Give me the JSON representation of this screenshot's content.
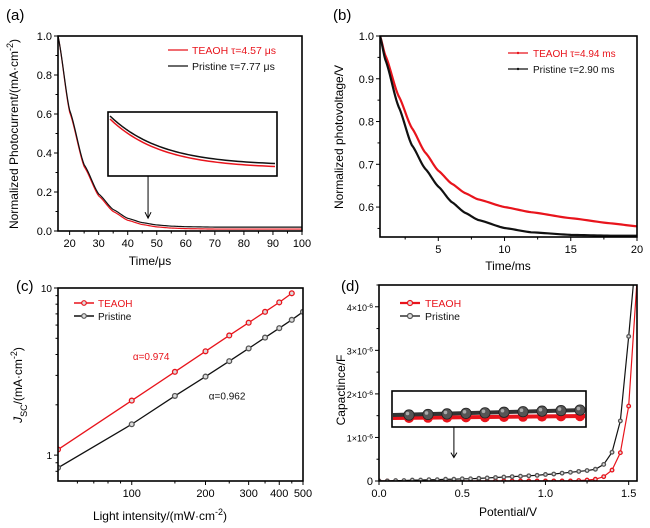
{
  "colors": {
    "teaoh": "#e8141c",
    "pristine": "#111111",
    "pristine_marker": "#555555",
    "axis": "#000000"
  },
  "chart_data": [
    {
      "id": "a",
      "panel_label": "(a)",
      "type": "line",
      "title": "",
      "xlabel": "Time/μs",
      "ylabel": "Normalized Photocurrent/(mA·cm",
      "ylabel_sup": "-2",
      "ylabel_end": ")",
      "xlim": [
        16,
        100
      ],
      "ylim": [
        0.0,
        1.0
      ],
      "xscale": "linear",
      "yscale": "linear",
      "xticks": [
        20,
        30,
        40,
        50,
        60,
        70,
        80,
        90,
        100
      ],
      "xtick_labels": [
        "20",
        "30",
        "40",
        "50",
        "60",
        "70",
        "80",
        "90",
        "100"
      ],
      "yticks": [
        0.0,
        0.2,
        0.4,
        0.6,
        0.8,
        1.0
      ],
      "ytick_labels": [
        "0.0",
        "0.2",
        "0.4",
        "0.6",
        "0.8",
        "1.0"
      ],
      "grid": false,
      "legend": {
        "position": "top-right",
        "entries": [
          {
            "label": "TEAOH τ=4.57 μs",
            "series": "TEAOH"
          },
          {
            "label": "Pristine τ=7.77 μs",
            "series": "Pristine"
          }
        ]
      },
      "series": [
        {
          "name": "TEAOH",
          "color_key": "teaoh",
          "marker": "none",
          "x": [
            16,
            20,
            25,
            30,
            35,
            40,
            45,
            50,
            55,
            60,
            70,
            80,
            90,
            100
          ],
          "y": [
            1.0,
            0.61,
            0.33,
            0.18,
            0.1,
            0.055,
            0.033,
            0.021,
            0.015,
            0.012,
            0.01,
            0.01,
            0.01,
            0.01
          ]
        },
        {
          "name": "Pristine",
          "color_key": "pristine",
          "marker": "none",
          "x": [
            16,
            20,
            25,
            30,
            35,
            40,
            45,
            50,
            55,
            60,
            70,
            80,
            90,
            100
          ],
          "y": [
            1.0,
            0.62,
            0.34,
            0.19,
            0.11,
            0.065,
            0.043,
            0.031,
            0.025,
            0.022,
            0.02,
            0.02,
            0.02,
            0.02
          ]
        }
      ],
      "annotations": [
        {
          "type": "inset-zoom",
          "description": "magnified tail of both curves",
          "arrow_to_x": 47,
          "arrow_to_y": 0.035
        }
      ]
    },
    {
      "id": "b",
      "panel_label": "(b)",
      "type": "line",
      "title": "",
      "xlabel": "Time/ms",
      "ylabel": "Normalized photovoltage/V",
      "xlim": [
        0.6,
        20
      ],
      "ylim": [
        0.53,
        1.0
      ],
      "xscale": "linear",
      "yscale": "linear",
      "xticks": [
        5,
        10,
        15,
        20
      ],
      "xtick_labels": [
        "5",
        "10",
        "15",
        "20"
      ],
      "yticks": [
        0.6,
        0.7,
        0.8,
        0.9,
        1.0
      ],
      "ytick_labels": [
        "0.6",
        "0.7",
        "0.8",
        "0.9",
        "1.0"
      ],
      "grid": false,
      "legend": {
        "position": "top-right",
        "entries": [
          {
            "label": "TEAOH τ=4.94 ms",
            "series": "TEAOH"
          },
          {
            "label": "Pristine  τ=2.90 ms",
            "series": "Pristine"
          }
        ]
      },
      "series": [
        {
          "name": "TEAOH",
          "color_key": "teaoh",
          "marker": "none",
          "x": [
            0.6,
            1,
            2,
            3,
            4,
            5,
            6,
            7,
            8,
            10,
            12,
            15,
            18,
            20
          ],
          "y": [
            1.0,
            0.955,
            0.86,
            0.785,
            0.728,
            0.685,
            0.655,
            0.633,
            0.618,
            0.6,
            0.588,
            0.574,
            0.562,
            0.555
          ]
        },
        {
          "name": "Pristine",
          "color_key": "pristine",
          "marker": "none",
          "x": [
            0.6,
            1,
            2,
            3,
            4,
            5,
            6,
            7,
            8,
            10,
            12,
            15,
            18,
            20
          ],
          "y": [
            1.0,
            0.945,
            0.835,
            0.745,
            0.69,
            0.648,
            0.612,
            0.587,
            0.57,
            0.551,
            0.541,
            0.535,
            0.533,
            0.533
          ]
        }
      ]
    },
    {
      "id": "c",
      "panel_label": "(c)",
      "type": "line",
      "title": "",
      "xlabel": "Light intensity/(mW·cm",
      "xlabel_sup": "-2",
      "xlabel_end": ")",
      "ylabel_main": "J",
      "ylabel_sub": "SC",
      "ylabel_rest": "/(mA·cm",
      "ylabel_sup": "-2",
      "ylabel_end": ")",
      "xlim": [
        50,
        500
      ],
      "ylim": [
        0.7,
        10
      ],
      "xscale": "log",
      "yscale": "log",
      "xticks": [
        100,
        200,
        300,
        400,
        500
      ],
      "xtick_labels": [
        "100",
        "200",
        "300",
        "400",
        "500"
      ],
      "yticks": [
        1,
        10
      ],
      "ytick_labels": [
        "1",
        "10"
      ],
      "grid": false,
      "legend": {
        "position": "top-left",
        "entries": [
          {
            "label": "TEAOH",
            "series": "TEAOH"
          },
          {
            "label": "Pristine",
            "series": "Pristine"
          }
        ]
      },
      "series": [
        {
          "name": "TEAOH",
          "color_key": "teaoh",
          "marker": "circle",
          "x": [
            50,
            100,
            150,
            200,
            250,
            300,
            350,
            400,
            450
          ],
          "y": [
            1.08,
            2.12,
            3.15,
            4.18,
            5.2,
            6.2,
            7.2,
            8.2,
            9.3
          ]
        },
        {
          "name": "Pristine",
          "color_key": "pristine",
          "marker": "circle",
          "x": [
            50,
            100,
            150,
            200,
            250,
            300,
            350,
            400,
            450,
            500
          ],
          "y": [
            0.84,
            1.53,
            2.26,
            2.95,
            3.65,
            4.35,
            5.05,
            5.75,
            6.45,
            7.2
          ]
        }
      ],
      "annotations": [
        {
          "text": "α=0.974",
          "color_key": "teaoh",
          "x": 120,
          "y": 3.7
        },
        {
          "text": "α=0.962",
          "color_key": "pristine",
          "x": 245,
          "y": 2.15
        }
      ]
    },
    {
      "id": "d",
      "panel_label": "(d)",
      "type": "line",
      "title": "",
      "xlabel": "Potential/V",
      "ylabel": "Capactince/F",
      "xlim": [
        0.0,
        1.55
      ],
      "ylim": [
        0,
        4.5e-06
      ],
      "xscale": "linear",
      "yscale": "linear",
      "xticks": [
        0.0,
        0.5,
        1.0,
        1.5
      ],
      "xtick_labels": [
        "0.0",
        "0.5",
        "1.0",
        "1.5"
      ],
      "yticks": [
        0,
        1e-06,
        2e-06,
        3e-06,
        4e-06
      ],
      "ytick_labels": [
        "0",
        "1×10",
        "2×10",
        "3×10",
        "4×10"
      ],
      "ytick_sup": [
        "",
        "-6",
        "-6",
        "-6",
        "-6"
      ],
      "grid": false,
      "legend": {
        "position": "top-left",
        "entries": [
          {
            "label": "TEAOH",
            "series": "TEAOH"
          },
          {
            "label": "Pristine",
            "series": "Pristine"
          }
        ]
      },
      "series": [
        {
          "name": "TEAOH",
          "color_key": "teaoh",
          "marker": "circle",
          "x": [
            0.0,
            0.05,
            0.1,
            0.15,
            0.2,
            0.25,
            0.3,
            0.35,
            0.4,
            0.45,
            0.5,
            0.55,
            0.6,
            0.65,
            0.7,
            0.75,
            0.8,
            0.85,
            0.9,
            0.95,
            1.0,
            1.05,
            1.1,
            1.15,
            1.2,
            1.25,
            1.3,
            1.35,
            1.4,
            1.45,
            1.5,
            1.55
          ],
          "y": [
            0,
            0,
            0,
            0,
            0,
            0,
            0,
            0,
            0,
            0,
            0,
            0,
            0,
            0,
            0,
            0,
            0,
            0,
            0,
            0,
            0,
            0,
            0,
            0,
            1e-08,
            2e-08,
            4e-08,
            1e-07,
            2.5e-07,
            6.5e-07,
            1.72e-06,
            4.6e-06
          ]
        },
        {
          "name": "Pristine",
          "color_key": "pristine",
          "marker": "circle",
          "x": [
            0.0,
            0.05,
            0.1,
            0.15,
            0.2,
            0.25,
            0.3,
            0.35,
            0.4,
            0.45,
            0.5,
            0.55,
            0.6,
            0.65,
            0.7,
            0.75,
            0.8,
            0.85,
            0.9,
            0.95,
            1.0,
            1.05,
            1.1,
            1.15,
            1.2,
            1.25,
            1.3,
            1.35,
            1.4,
            1.45,
            1.5,
            1.53
          ],
          "y": [
            0,
            0,
            1e-08,
            1e-08,
            2e-08,
            2e-08,
            3e-08,
            3e-08,
            4e-08,
            4e-08,
            5e-08,
            5e-08,
            6e-08,
            7e-08,
            8e-08,
            9e-08,
            1e-07,
            1.1e-07,
            1.2e-07,
            1.3e-07,
            1.5e-07,
            1.6e-07,
            1.8e-07,
            2e-07,
            2.2e-07,
            2.4e-07,
            2.7e-07,
            3.8e-07,
            6.6e-07,
            1.38e-06,
            3.32e-06,
            4.6e-06
          ]
        }
      ],
      "annotations": [
        {
          "type": "inset-zoom",
          "description": "magnified low-voltage region showing Pristine above TEAOH",
          "arrow_to_x": 0.45,
          "arrow_to_y": 4e-07
        }
      ]
    }
  ]
}
